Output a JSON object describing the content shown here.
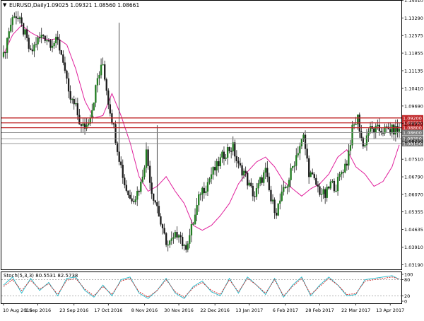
{
  "header": {
    "symbol_label": "EURUSD,Daily",
    "ohlc_label": "1.09025 1.09321 1.08560 1.08661",
    "dropdown_glyph": "▼"
  },
  "stoch_panel": {
    "label": "Stoch(5,3,3) 80.5531 82.5738"
  },
  "colors": {
    "bull": "#1e7a1e",
    "bear": "#1a1a1a",
    "wick": "#1a1a1a",
    "ma": "#e0209c",
    "stoch_main": "#22b8c8",
    "stoch_signal": "#d02020",
    "resistance": "#c0282a",
    "support": "#8a8a8a",
    "price_badge_red": "#c0282a",
    "price_badge_grey": "#777777",
    "axis": "#000000",
    "level_dotted": "#999999"
  },
  "chart_data": [
    {
      "type": "candlestick",
      "title": "EURUSD,Daily",
      "ylim": [
        1.03,
        1.14
      ],
      "y_ticks": [
        "1.14010",
        "1.13290",
        "1.12575",
        "1.11855",
        "1.11135",
        "1.10410",
        "1.09690",
        "1.08970",
        "1.08250",
        "1.07510",
        "1.06790",
        "1.06070",
        "1.05355",
        "1.04635",
        "1.03910",
        "1.03190"
      ],
      "x_ticks": [
        "10 Aug 2016",
        "1 Sep 2016",
        "23 Sep 2016",
        "17 Oct 2016",
        "8 Nov 2016",
        "30 Nov 2016",
        "22 Dec 2016",
        "13 Jan 2017",
        "6 Feb 2017",
        "28 Feb 2017",
        "22 Mar 2017",
        "13 Apr 2017"
      ],
      "moving_average_anchors": [
        [
          0,
          1.118
        ],
        [
          5,
          1.126
        ],
        [
          10,
          1.13
        ],
        [
          15,
          1.127
        ],
        [
          20,
          1.125
        ],
        [
          25,
          1.124
        ],
        [
          30,
          1.1245
        ],
        [
          35,
          1.122
        ],
        [
          40,
          1.112
        ],
        [
          45,
          1.099
        ],
        [
          50,
          1.092
        ],
        [
          55,
          1.093
        ],
        [
          60,
          1.102
        ],
        [
          65,
          1.093
        ],
        [
          70,
          1.082
        ],
        [
          75,
          1.068
        ],
        [
          80,
          1.062
        ],
        [
          85,
          1.064
        ],
        [
          90,
          1.068
        ],
        [
          95,
          1.062
        ],
        [
          100,
          1.057
        ],
        [
          105,
          1.048
        ],
        [
          110,
          1.046
        ],
        [
          115,
          1.048
        ],
        [
          120,
          1.052
        ],
        [
          125,
          1.057
        ],
        [
          130,
          1.065
        ],
        [
          135,
          1.07
        ],
        [
          140,
          1.074
        ],
        [
          145,
          1.076
        ],
        [
          150,
          1.072
        ],
        [
          155,
          1.066
        ],
        [
          160,
          1.063
        ],
        [
          165,
          1.06
        ],
        [
          170,
          1.063
        ],
        [
          175,
          1.065
        ],
        [
          180,
          1.069
        ],
        [
          185,
          1.076
        ],
        [
          190,
          1.079
        ],
        [
          195,
          1.072
        ],
        [
          200,
          1.069
        ],
        [
          205,
          1.064
        ],
        [
          210,
          1.066
        ],
        [
          215,
          1.072
        ],
        [
          219,
          1.081
        ]
      ],
      "candle_segments": [
        [
          0,
          1.117
        ],
        [
          3,
          1.128
        ],
        [
          6,
          1.135
        ],
        [
          9,
          1.131
        ],
        [
          12,
          1.126
        ],
        [
          15,
          1.118
        ],
        [
          18,
          1.123
        ],
        [
          22,
          1.126
        ],
        [
          26,
          1.123
        ],
        [
          30,
          1.123
        ],
        [
          33,
          1.116
        ],
        [
          36,
          1.101
        ],
        [
          40,
          1.096
        ],
        [
          43,
          1.088
        ],
        [
          46,
          1.089
        ],
        [
          49,
          1.096
        ],
        [
          52,
          1.108
        ],
        [
          55,
          1.114
        ],
        [
          58,
          1.099
        ],
        [
          61,
          1.088
        ],
        [
          64,
          1.076
        ],
        [
          67,
          1.065
        ],
        [
          70,
          1.059
        ],
        [
          73,
          1.06
        ],
        [
          76,
          1.065
        ],
        [
          79,
          1.078
        ],
        [
          82,
          1.062
        ],
        [
          85,
          1.056
        ],
        [
          88,
          1.045
        ],
        [
          91,
          1.04
        ],
        [
          94,
          1.042
        ],
        [
          97,
          1.046
        ],
        [
          100,
          1.038
        ],
        [
          103,
          1.044
        ],
        [
          106,
          1.052
        ],
        [
          109,
          1.062
        ],
        [
          112,
          1.064
        ],
        [
          115,
          1.069
        ],
        [
          118,
          1.072
        ],
        [
          121,
          1.076
        ],
        [
          124,
          1.079
        ],
        [
          127,
          1.08
        ],
        [
          130,
          1.072
        ],
        [
          133,
          1.07
        ],
        [
          136,
          1.064
        ],
        [
          139,
          1.06
        ],
        [
          142,
          1.066
        ],
        [
          145,
          1.07
        ],
        [
          148,
          1.058
        ],
        [
          151,
          1.054
        ],
        [
          154,
          1.06
        ],
        [
          157,
          1.065
        ],
        [
          160,
          1.072
        ],
        [
          163,
          1.079
        ],
        [
          166,
          1.084
        ],
        [
          169,
          1.07
        ],
        [
          172,
          1.066
        ],
        [
          175,
          1.062
        ],
        [
          178,
          1.06
        ],
        [
          181,
          1.065
        ],
        [
          184,
          1.064
        ],
        [
          187,
          1.07
        ],
        [
          190,
          1.074
        ],
        [
          193,
          1.087
        ],
        [
          196,
          1.092
        ],
        [
          199,
          1.08
        ],
        [
          202,
          1.087
        ]
      ],
      "price_levels": [
        {
          "value": "1.09200",
          "style": "resistance"
        },
        {
          "value": "1.09000",
          "style": "resistance"
        },
        {
          "value": "1.08800",
          "style": "resistance"
        },
        {
          "value": "1.08600",
          "style": "support"
        },
        {
          "value": "1.08350",
          "style": "support"
        },
        {
          "value": "1.08150",
          "style": "support"
        }
      ]
    },
    {
      "type": "line",
      "title": "Stoch(5,3,3) 80.5531 82.5738",
      "ylim": [
        0,
        100
      ],
      "y_ticks": [
        "100",
        "80",
        "20",
        "0"
      ],
      "levels": [
        80,
        20
      ],
      "series": [
        {
          "name": "main",
          "anchors": [
            [
              0,
              60
            ],
            [
              5,
              90
            ],
            [
              10,
              30
            ],
            [
              15,
              85
            ],
            [
              20,
              40
            ],
            [
              25,
              70
            ],
            [
              30,
              20
            ],
            [
              35,
              85
            ],
            [
              40,
              90
            ],
            [
              45,
              40
            ],
            [
              50,
              15
            ],
            [
              55,
              60
            ],
            [
              60,
              20
            ],
            [
              65,
              80
            ],
            [
              70,
              90
            ],
            [
              75,
              30
            ],
            [
              80,
              10
            ],
            [
              85,
              40
            ],
            [
              90,
              85
            ],
            [
              95,
              30
            ],
            [
              100,
              10
            ],
            [
              105,
              55
            ],
            [
              110,
              75
            ],
            [
              115,
              35
            ],
            [
              120,
              20
            ],
            [
              125,
              85
            ],
            [
              130,
              30
            ],
            [
              135,
              90
            ],
            [
              140,
              60
            ],
            [
              145,
              25
            ],
            [
              150,
              85
            ],
            [
              155,
              15
            ],
            [
              160,
              60
            ],
            [
              165,
              90
            ],
            [
              170,
              20
            ],
            [
              175,
              60
            ],
            [
              180,
              90
            ],
            [
              185,
              60
            ],
            [
              190,
              20
            ],
            [
              195,
              25
            ],
            [
              200,
              80
            ],
            [
              205,
              85
            ],
            [
              210,
              90
            ],
            [
              215,
              95
            ],
            [
              219,
              82
            ]
          ]
        },
        {
          "name": "signal",
          "anchors": [
            [
              0,
              55
            ],
            [
              5,
              80
            ],
            [
              10,
              40
            ],
            [
              15,
              78
            ],
            [
              20,
              45
            ],
            [
              25,
              65
            ],
            [
              30,
              25
            ],
            [
              35,
              78
            ],
            [
              40,
              85
            ],
            [
              45,
              45
            ],
            [
              50,
              20
            ],
            [
              55,
              55
            ],
            [
              60,
              25
            ],
            [
              65,
              75
            ],
            [
              70,
              85
            ],
            [
              75,
              35
            ],
            [
              80,
              15
            ],
            [
              85,
              40
            ],
            [
              90,
              80
            ],
            [
              95,
              35
            ],
            [
              100,
              15
            ],
            [
              105,
              50
            ],
            [
              110,
              70
            ],
            [
              115,
              40
            ],
            [
              120,
              25
            ],
            [
              125,
              80
            ],
            [
              130,
              35
            ],
            [
              135,
              85
            ],
            [
              140,
              60
            ],
            [
              145,
              30
            ],
            [
              150,
              80
            ],
            [
              155,
              20
            ],
            [
              160,
              55
            ],
            [
              165,
              85
            ],
            [
              170,
              25
            ],
            [
              175,
              55
            ],
            [
              180,
              85
            ],
            [
              185,
              60
            ],
            [
              190,
              25
            ],
            [
              195,
              28
            ],
            [
              200,
              75
            ],
            [
              205,
              80
            ],
            [
              210,
              85
            ],
            [
              215,
              90
            ],
            [
              219,
              83
            ]
          ]
        }
      ]
    }
  ]
}
